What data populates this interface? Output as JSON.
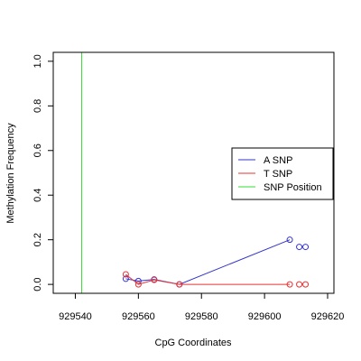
{
  "chart_data": {
    "type": "scatter",
    "title": "",
    "xlabel": "CpG Coordinates",
    "ylabel": "Methylation Frequency",
    "xlim": [
      929533,
      929622
    ],
    "ylim": [
      -0.04,
      1.04
    ],
    "x_ticks": [
      929540,
      929560,
      929580,
      929600,
      929620
    ],
    "y_ticks": [
      0.0,
      0.2,
      0.4,
      0.6,
      0.8,
      1.0
    ],
    "x_tick_labels": [
      "929540",
      "929560",
      "929580",
      "929600",
      "929620"
    ],
    "y_tick_labels": [
      "0.0",
      "0.2",
      "0.4",
      "0.6",
      "0.8",
      "1.0"
    ],
    "grid": false,
    "legend_position": "right",
    "series": [
      {
        "name": "A SNP",
        "color": "#3333cc",
        "x": [
          929556,
          929560,
          929565,
          929573,
          929608,
          929611,
          929613
        ],
        "y": [
          0.025,
          0.015,
          0.022,
          0.0,
          0.2,
          0.168,
          0.168
        ],
        "line_indices": [
          0,
          1,
          2,
          3,
          4
        ]
      },
      {
        "name": "T SNP",
        "color": "#e83333",
        "x": [
          929556,
          929560,
          929565,
          929573,
          929608,
          929611,
          929613
        ],
        "y": [
          0.045,
          0.0,
          0.02,
          0.0,
          0.0,
          0.0,
          0.0
        ],
        "line_indices": [
          0,
          1,
          2,
          3,
          4
        ]
      }
    ],
    "snp_position": {
      "name": "SNP Position",
      "color": "#33dd33",
      "x": 929542
    }
  }
}
